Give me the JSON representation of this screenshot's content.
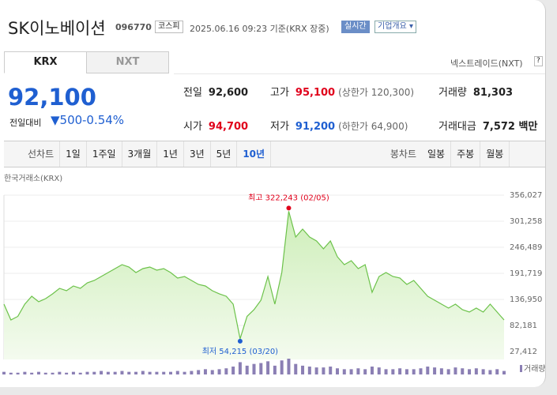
{
  "header": {
    "name": "SK이노베이션",
    "code": "096770",
    "market": "코스피",
    "timestamp": "2025.06.16 09:23 기준(KRX 장중)",
    "realtime": "실시간",
    "company_button": "기업개요 ▾"
  },
  "tabs": [
    "KRX",
    "NXT"
  ],
  "nxt_link": "넥스트레이드(NXT)",
  "help": "?",
  "price": {
    "current": "92,100",
    "change_label": "전일대비",
    "change": "▼500",
    "change_pct": "-0.54%"
  },
  "stats": [
    {
      "label": "전일",
      "value": "92,600",
      "color": "#222"
    },
    {
      "label": "고가",
      "value": "95,100",
      "note": "(상한가 120,300)",
      "color": "#e0001b"
    },
    {
      "label": "거래량",
      "value": "81,303",
      "color": "#222"
    },
    {
      "label": "시가",
      "value": "94,700",
      "color": "#e0001b"
    },
    {
      "label": "저가",
      "value": "91,200",
      "note": "(하한가 64,900)",
      "color": "#1f5fd1"
    },
    {
      "label": "거래대금",
      "value": "7,572 백만",
      "color": "#222"
    }
  ],
  "periods": {
    "line_label": "선차트",
    "line": [
      "1일",
      "1주일",
      "3개월",
      "1년",
      "3년",
      "5년",
      "10년"
    ],
    "candle_label": "봉차트",
    "candle": [
      "일봉",
      "주봉",
      "월봉"
    ]
  },
  "chart_data": {
    "type": "line",
    "source": "한국거래소(KRX)",
    "color": "#6cc24a",
    "values": [
      127000,
      93800,
      101300,
      127000,
      143600,
      132000,
      138600,
      148600,
      160200,
      155200,
      165200,
      160200,
      171800,
      176800,
      185100,
      193400,
      201700,
      210000,
      205000,
      193400,
      201700,
      205000,
      198400,
      201700,
      193400,
      181800,
      185100,
      176800,
      168500,
      165200,
      155200,
      148600,
      143600,
      127000,
      54215,
      101300,
      115400,
      135300,
      185100,
      127000,
      193400,
      322243,
      268100,
      284700,
      268100,
      259800,
      243200,
      259800,
      226600,
      210000,
      218300,
      201700,
      210000,
      151900,
      185100,
      193400,
      185100,
      181800,
      168500,
      176800,
      160200,
      143600,
      135300,
      127000,
      118700,
      127000,
      115400,
      110400,
      118700,
      110400,
      127000,
      110400,
      93800
    ],
    "ylim": [
      27412,
      356027
    ],
    "yticks": [
      {
        "value": 356027,
        "label": "356,027"
      },
      {
        "value": 301258,
        "label": "301,258"
      },
      {
        "value": 246489,
        "label": "246,489"
      },
      {
        "value": 191719,
        "label": "191,719"
      },
      {
        "value": 136950,
        "label": "136,950"
      },
      {
        "value": 82181,
        "label": "82,181"
      },
      {
        "value": 27412,
        "label": "27,412"
      }
    ],
    "annotations": {
      "max": "최고 322,243 (02/05)",
      "min": "최저 54,215 (03/20)"
    },
    "volume_label": "거래량",
    "volume_color": "#8b7fb4",
    "volume": [
      3,
      2,
      2,
      3,
      2,
      3,
      2,
      2,
      3,
      2,
      3,
      2,
      3,
      3,
      4,
      3,
      3,
      4,
      3,
      3,
      4,
      3,
      3,
      3,
      3,
      4,
      3,
      4,
      5,
      6,
      5,
      6,
      7,
      9,
      14,
      10,
      12,
      13,
      15,
      10,
      16,
      18,
      12,
      10,
      9,
      8,
      8,
      9,
      7,
      6,
      6,
      7,
      6,
      9,
      8,
      6,
      6,
      7,
      6,
      6,
      7,
      9,
      8,
      7,
      6,
      8,
      7,
      6,
      7,
      6,
      5,
      6,
      4
    ]
  }
}
